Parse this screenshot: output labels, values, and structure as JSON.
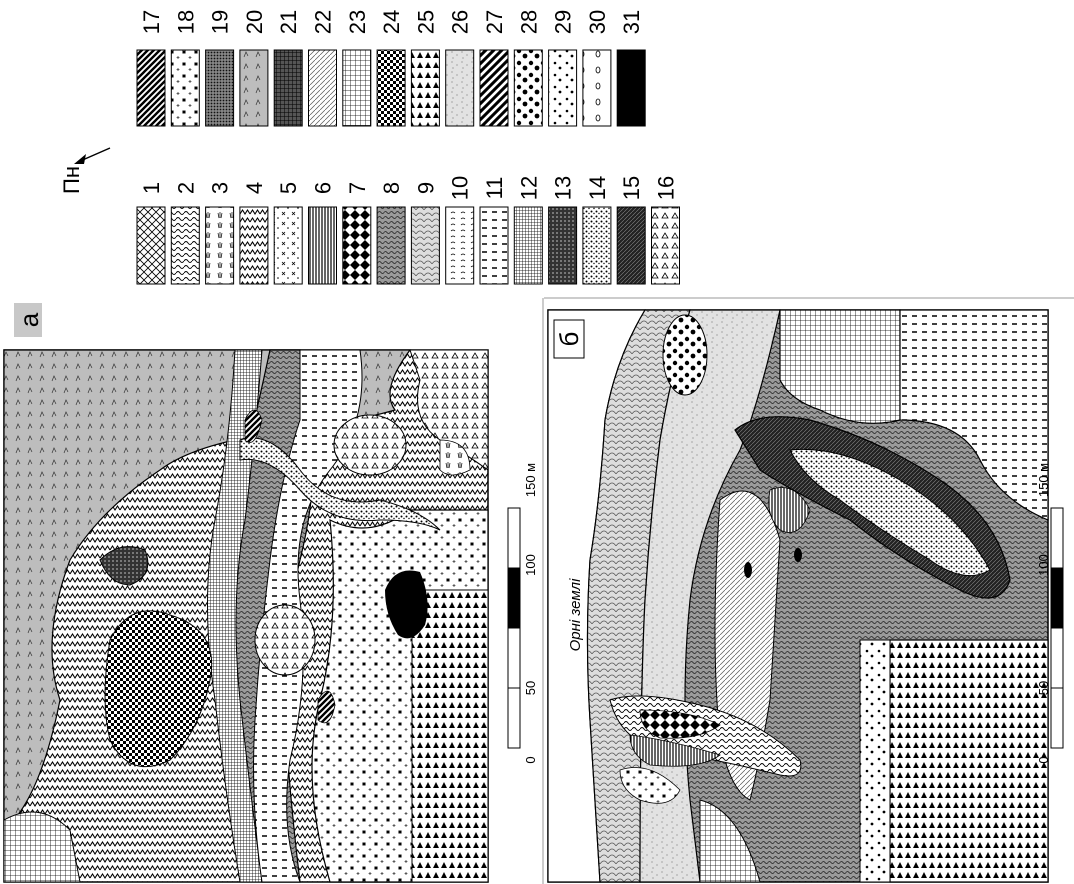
{
  "map_a": {
    "label": "а",
    "scale": {
      "ticks": [
        "0",
        "50",
        "100",
        "150 м"
      ]
    }
  },
  "map_b": {
    "label": "б",
    "annotation": "Орні землі",
    "scale": {
      "ticks": [
        "0",
        "50",
        "100",
        "150 м"
      ]
    }
  },
  "north_arrow": {
    "label": "Пн"
  },
  "legend": {
    "items": [
      {
        "num": "1",
        "pattern": "cross"
      },
      {
        "num": "2",
        "pattern": "wavy-dense"
      },
      {
        "num": "3",
        "pattern": "grass"
      },
      {
        "num": "4",
        "pattern": "zigzag"
      },
      {
        "num": "5",
        "pattern": "scattered-cross"
      },
      {
        "num": "6",
        "pattern": "vertical-lines"
      },
      {
        "num": "7",
        "pattern": "diamonds"
      },
      {
        "num": "8",
        "pattern": "wavy-grey"
      },
      {
        "num": "9",
        "pattern": "scales"
      },
      {
        "num": "10",
        "pattern": "wavy-dash"
      },
      {
        "num": "11",
        "pattern": "dashes"
      },
      {
        "num": "12",
        "pattern": "fine-grid"
      },
      {
        "num": "13",
        "pattern": "dense-check"
      },
      {
        "num": "14",
        "pattern": "dots"
      },
      {
        "num": "15",
        "pattern": "dark-weave"
      },
      {
        "num": "16",
        "pattern": "triangles"
      },
      {
        "num": "17",
        "pattern": "thick-diagonal"
      },
      {
        "num": "18",
        "pattern": "stars"
      },
      {
        "num": "19",
        "pattern": "dense-dots"
      },
      {
        "num": "20",
        "pattern": "grey-ticks"
      },
      {
        "num": "21",
        "pattern": "grid-dark"
      },
      {
        "num": "22",
        "pattern": "light-diagonal"
      },
      {
        "num": "23",
        "pattern": "square-grid"
      },
      {
        "num": "24",
        "pattern": "checker"
      },
      {
        "num": "25",
        "pattern": "triangle-rows"
      },
      {
        "num": "26",
        "pattern": "stipple-oval"
      },
      {
        "num": "27",
        "pattern": "thick-stripes"
      },
      {
        "num": "28",
        "pattern": "blobs"
      },
      {
        "num": "29",
        "pattern": "small-blobs"
      },
      {
        "num": "30",
        "pattern": "ovals"
      },
      {
        "num": "31",
        "pattern": "solid-black"
      }
    ]
  }
}
